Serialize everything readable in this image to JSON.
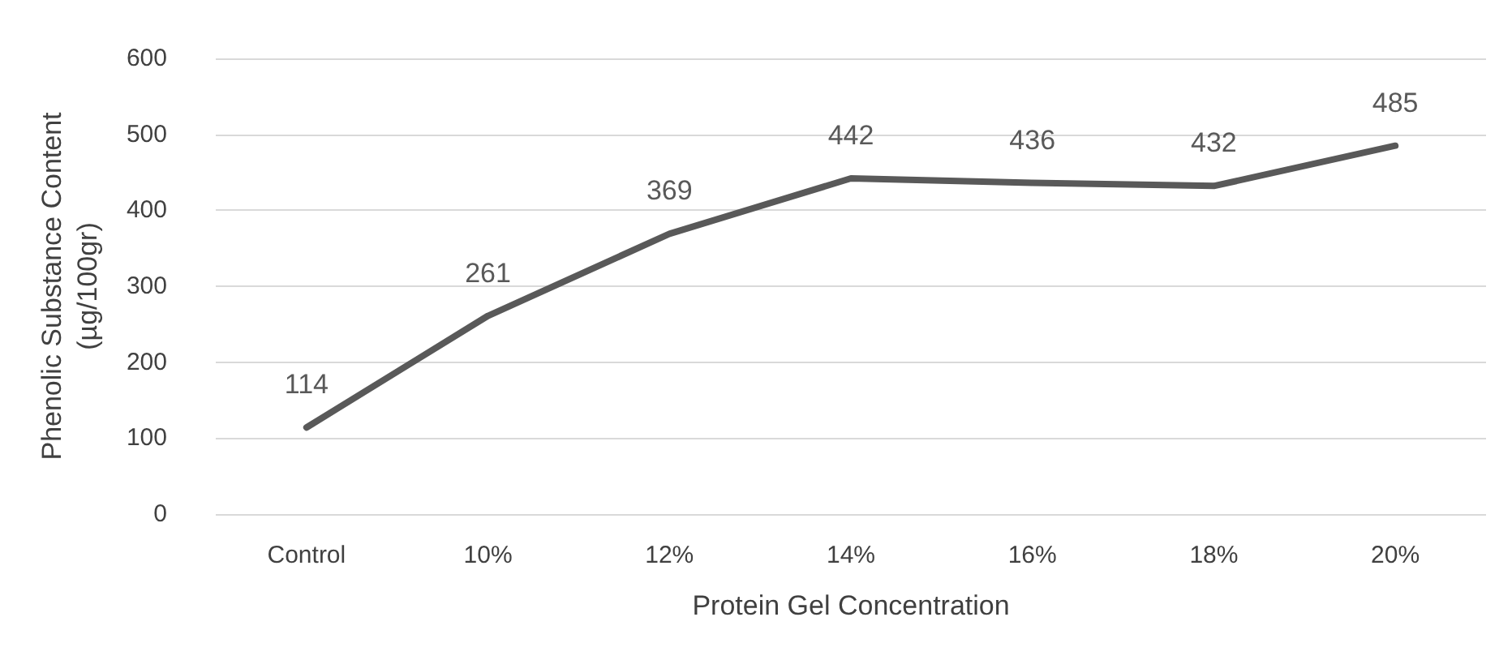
{
  "chart_data": {
    "type": "line",
    "xlabel": "Protein Gel Concentration",
    "ylabel": "Phenolic Substance Content\n(µg/100gr)",
    "categories": [
      "Control",
      "10%",
      "12%",
      "14%",
      "16%",
      "18%",
      "20%"
    ],
    "series": [
      {
        "color": "#595959",
        "values": [
          114,
          261,
          369,
          442,
          436,
          432,
          485
        ]
      }
    ],
    "ylim": [
      0,
      600
    ],
    "yticks": [
      0,
      100,
      200,
      300,
      400,
      500,
      600
    ],
    "grid": "y",
    "data_labels": true,
    "marker": "none",
    "line_style": "solid"
  }
}
